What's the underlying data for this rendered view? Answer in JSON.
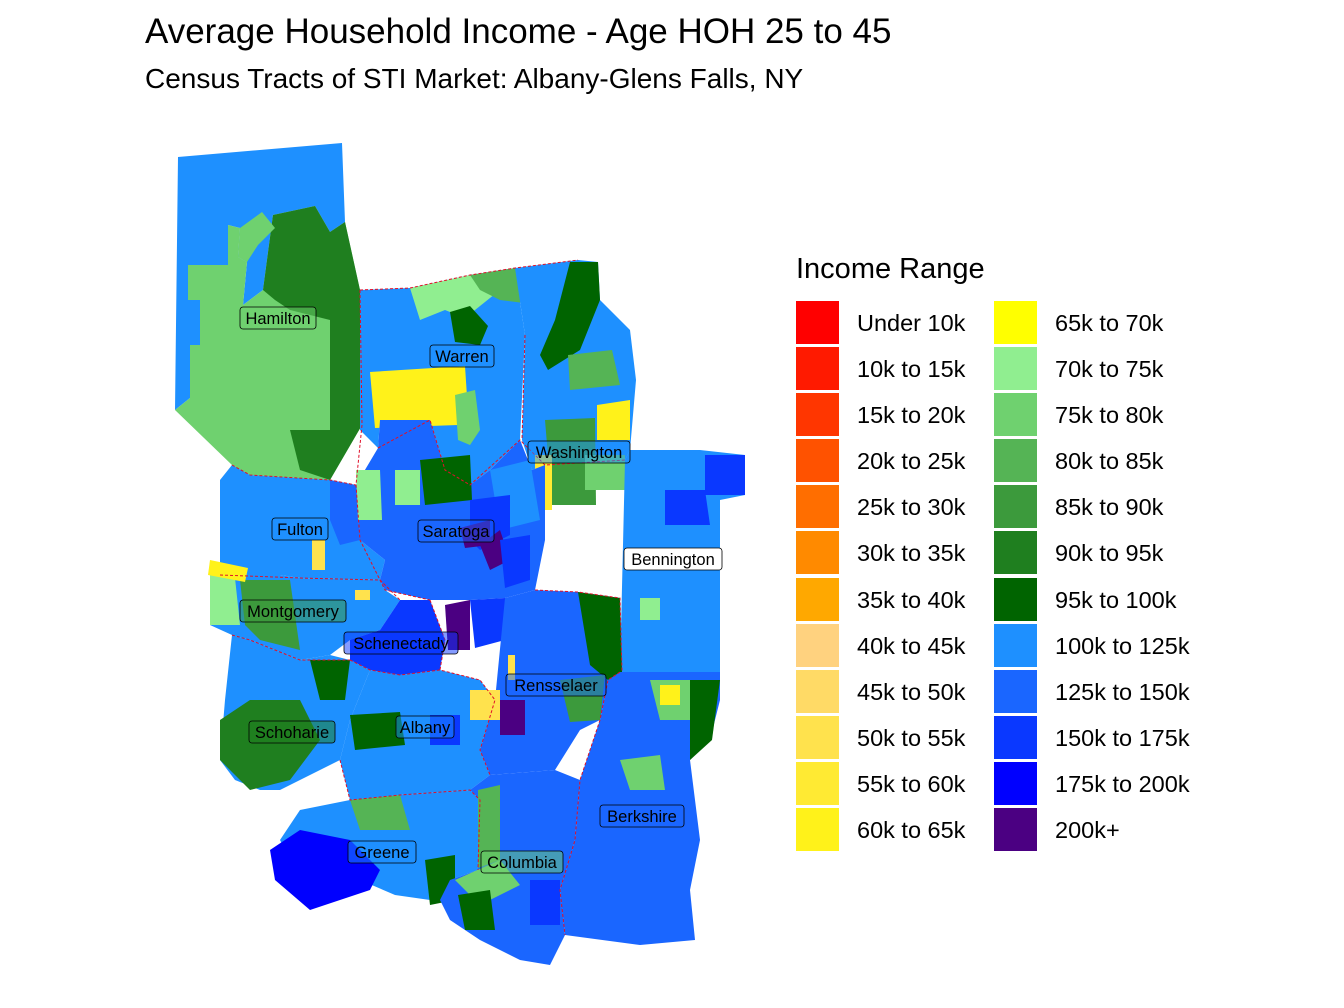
{
  "title": "Average Household Income - Age HOH 25 to 45",
  "subtitle": "Census Tracts of STI Market: Albany-Glens Falls, NY",
  "legend": {
    "title": "Income Range",
    "items": [
      {
        "label": "Under 10k",
        "color": "#FF0000"
      },
      {
        "label": "10k to 15k",
        "color": "#FF1A00"
      },
      {
        "label": "15k to 20k",
        "color": "#FF3600"
      },
      {
        "label": "20k to 25k",
        "color": "#FF5200"
      },
      {
        "label": "25k to 30k",
        "color": "#FF6E00"
      },
      {
        "label": "30k to 35k",
        "color": "#FF8A00"
      },
      {
        "label": "35k to 40k",
        "color": "#FFA800"
      },
      {
        "label": "40k to 45k",
        "color": "#FFD27F"
      },
      {
        "label": "45k to 50k",
        "color": "#FFDA66"
      },
      {
        "label": "50k to 55k",
        "color": "#FFE24D"
      },
      {
        "label": "55k to 60k",
        "color": "#FFEA33"
      },
      {
        "label": "60k to 65k",
        "color": "#FFF21A"
      },
      {
        "label": "65k to 70k",
        "color": "#FFFF00"
      },
      {
        "label": "70k to 75k",
        "color": "#90EE90"
      },
      {
        "label": "75k to 80k",
        "color": "#6FD16F"
      },
      {
        "label": "80k to 85k",
        "color": "#55B455"
      },
      {
        "label": "85k to 90k",
        "color": "#3C9A3C"
      },
      {
        "label": "90k to 95k",
        "color": "#1F7F1F"
      },
      {
        "label": "95k to 100k",
        "color": "#006400"
      },
      {
        "label": "100k to 125k",
        "color": "#1E90FF"
      },
      {
        "label": "125k to 150k",
        "color": "#1A66FF"
      },
      {
        "label": "150k to 175k",
        "color": "#0A38FF"
      },
      {
        "label": "175k to 200k",
        "color": "#0000FF"
      },
      {
        "label": "200k+",
        "color": "#4B0082"
      }
    ]
  },
  "counties": [
    {
      "name": "Hamilton"
    },
    {
      "name": "Warren"
    },
    {
      "name": "Washington"
    },
    {
      "name": "Fulton"
    },
    {
      "name": "Saratoga"
    },
    {
      "name": "Bennington"
    },
    {
      "name": "Montgomery"
    },
    {
      "name": "Schenectady"
    },
    {
      "name": "Rensselaer"
    },
    {
      "name": "Schoharie"
    },
    {
      "name": "Albany"
    },
    {
      "name": "Berkshire"
    },
    {
      "name": "Greene"
    },
    {
      "name": "Columbia"
    }
  ]
}
